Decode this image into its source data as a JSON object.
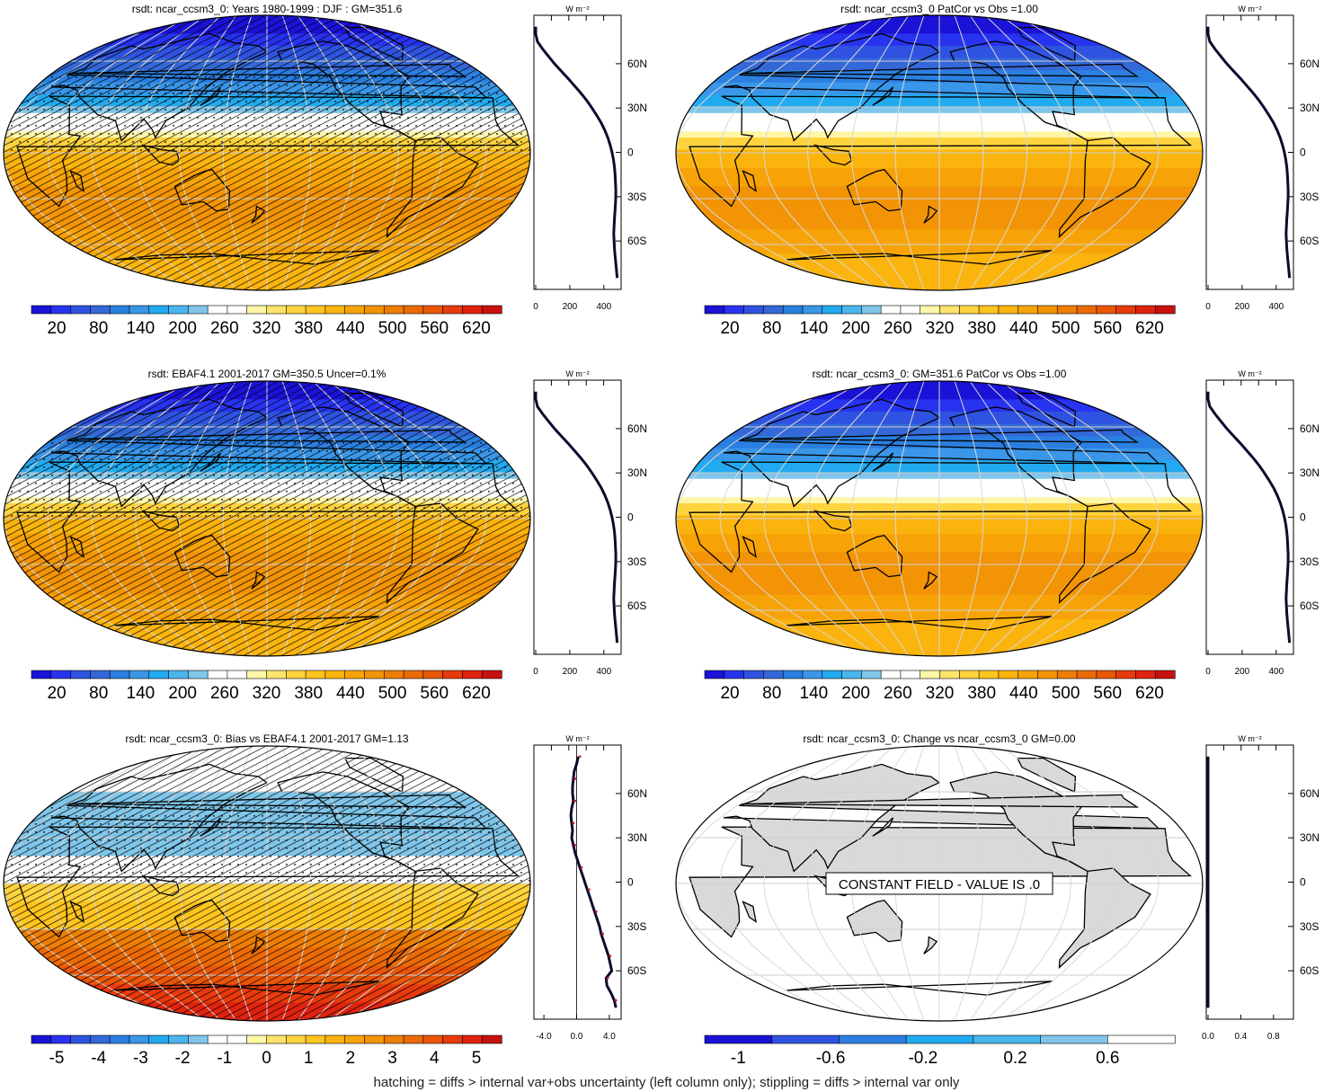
{
  "caption": "hatching = diffs > internal var+obs uncertainty (left column only); stippling = diffs > internal var only",
  "lat_labels": [
    "60N",
    "30N",
    "0",
    "30S",
    "60S"
  ],
  "lat_values": [
    60,
    30,
    0,
    -30,
    -60
  ],
  "profile_unit": "W m⁻²",
  "colors": {
    "cool_scale": [
      "#1a12d6",
      "#2833f0",
      "#2f53e0",
      "#3468d8",
      "#2a7fe0",
      "#3a96e8",
      "#22aaf0",
      "#4ab6ee",
      "#7fc6ea",
      "#ffffff",
      "#ffffff",
      "#fff6a8",
      "#ffe36a",
      "#ffd33e",
      "#ffc51e",
      "#fbb40d",
      "#f7a308",
      "#f29405",
      "#ee7e05",
      "#ec6a06",
      "#ea5608",
      "#e83a0c",
      "#e0230f",
      "#c81010"
    ],
    "bias_scale": [
      "#1a12d6",
      "#2833f0",
      "#2f53e0",
      "#3468d8",
      "#2a7fe0",
      "#3a96e8",
      "#22aaf0",
      "#4ab6ee",
      "#7fc6ea",
      "#ffffff",
      "#ffffff",
      "#fff6a8",
      "#ffe36a",
      "#ffd33e",
      "#ffc51e",
      "#fbb40d",
      "#f7a308",
      "#f29405",
      "#ee7e05",
      "#ec6a06",
      "#ea5608",
      "#e83a0c",
      "#e0230f",
      "#c81010"
    ],
    "change_scale": [
      "#1a12d6",
      "#2f53e0",
      "#2a7fe0",
      "#22aaf0",
      "#4ab6ee",
      "#7fc6ea",
      "#ffffff"
    ],
    "land_gray": "#d9d9d9",
    "profile_line": "#0d0a2e",
    "profile_bias_dots": "#cc1b1b"
  },
  "chart_data": [
    {
      "id": "p1",
      "type": "heatmap",
      "projection": "robinson",
      "title": "rsdt: ncar_ccsm3_0: Years 1980-1999 : DJF : GM=351.6",
      "colorbar_ticks": [
        "20",
        "80",
        "140",
        "200",
        "260",
        "320",
        "380",
        "440",
        "500",
        "560",
        "620"
      ],
      "hatching": true,
      "stippling": true,
      "profile": {
        "xlim": [
          0,
          480
        ],
        "xticks": [
          "0",
          "200",
          "400"
        ],
        "lat": [
          85,
          80,
          75,
          70,
          65,
          60,
          55,
          50,
          45,
          40,
          35,
          30,
          25,
          20,
          15,
          10,
          5,
          0,
          -5,
          -10,
          -15,
          -20,
          -25,
          -30,
          -35,
          -40,
          -45,
          -50,
          -55,
          -60,
          -65,
          -70,
          -75,
          -80,
          -85
        ],
        "values": [
          0,
          0,
          10,
          40,
          75,
          110,
          150,
          190,
          228,
          266,
          300,
          330,
          358,
          384,
          405,
          423,
          437,
          448,
          456,
          462,
          466,
          468,
          470,
          470,
          468,
          465,
          462,
          460,
          458,
          460,
          462,
          466,
          470,
          474,
          478
        ]
      }
    },
    {
      "id": "p2",
      "type": "heatmap",
      "projection": "robinson",
      "title": "rsdt: ncar_ccsm3_0 PatCor vs Obs =1.00",
      "colorbar_ticks": [
        "20",
        "80",
        "140",
        "200",
        "260",
        "320",
        "380",
        "440",
        "500",
        "560",
        "620"
      ],
      "hatching": false,
      "stippling": false,
      "profile": {
        "xlim": [
          0,
          480
        ],
        "xticks": [
          "0",
          "200",
          "400"
        ],
        "lat": [
          85,
          80,
          75,
          70,
          65,
          60,
          55,
          50,
          45,
          40,
          35,
          30,
          25,
          20,
          15,
          10,
          5,
          0,
          -5,
          -10,
          -15,
          -20,
          -25,
          -30,
          -35,
          -40,
          -45,
          -50,
          -55,
          -60,
          -65,
          -70,
          -75,
          -80,
          -85
        ],
        "values": [
          0,
          0,
          10,
          40,
          75,
          110,
          150,
          190,
          228,
          266,
          300,
          330,
          358,
          384,
          405,
          423,
          437,
          448,
          456,
          462,
          466,
          468,
          470,
          470,
          468,
          465,
          462,
          460,
          458,
          460,
          462,
          466,
          470,
          474,
          478
        ]
      }
    },
    {
      "id": "p3",
      "type": "heatmap",
      "projection": "robinson",
      "title": "rsdt: EBAF4.1 2001-2017 GM=350.5 Uncer=0.1%",
      "colorbar_ticks": [
        "20",
        "80",
        "140",
        "200",
        "260",
        "320",
        "380",
        "440",
        "500",
        "560",
        "620"
      ],
      "hatching": true,
      "stippling": true,
      "profile": {
        "xlim": [
          0,
          480
        ],
        "xticks": [
          "0",
          "200",
          "400"
        ],
        "lat": [
          85,
          80,
          75,
          70,
          65,
          60,
          55,
          50,
          45,
          40,
          35,
          30,
          25,
          20,
          15,
          10,
          5,
          0,
          -5,
          -10,
          -15,
          -20,
          -25,
          -30,
          -35,
          -40,
          -45,
          -50,
          -55,
          -60,
          -65,
          -70,
          -75,
          -80,
          -85
        ],
        "values": [
          0,
          0,
          10,
          40,
          75,
          110,
          150,
          190,
          228,
          266,
          300,
          330,
          358,
          384,
          405,
          423,
          437,
          448,
          456,
          462,
          466,
          468,
          470,
          470,
          468,
          465,
          462,
          460,
          458,
          460,
          462,
          466,
          470,
          474,
          478
        ]
      }
    },
    {
      "id": "p4",
      "type": "heatmap",
      "projection": "robinson",
      "title": "rsdt: ncar_ccsm3_0: GM=351.6 PatCor vs Obs =1.00",
      "colorbar_ticks": [
        "20",
        "80",
        "140",
        "200",
        "260",
        "320",
        "380",
        "440",
        "500",
        "560",
        "620"
      ],
      "hatching": false,
      "stippling": false,
      "profile": {
        "xlim": [
          0,
          480
        ],
        "xticks": [
          "0",
          "200",
          "400"
        ],
        "lat": [
          85,
          80,
          75,
          70,
          65,
          60,
          55,
          50,
          45,
          40,
          35,
          30,
          25,
          20,
          15,
          10,
          5,
          0,
          -5,
          -10,
          -15,
          -20,
          -25,
          -30,
          -35,
          -40,
          -45,
          -50,
          -55,
          -60,
          -65,
          -70,
          -75,
          -80,
          -85
        ],
        "values": [
          0,
          0,
          10,
          40,
          75,
          110,
          150,
          190,
          228,
          266,
          300,
          330,
          358,
          384,
          405,
          423,
          437,
          448,
          456,
          462,
          466,
          468,
          470,
          470,
          468,
          465,
          462,
          460,
          458,
          460,
          462,
          466,
          470,
          474,
          478
        ]
      }
    },
    {
      "id": "p5",
      "type": "heatmap",
      "projection": "robinson",
      "title": "rsdt: ncar_ccsm3_0: Bias vs EBAF4.1 2001-2017 GM=1.13",
      "colorbar_ticks": [
        "-5",
        "-4",
        "-3",
        "-2",
        "-1",
        "0",
        "1",
        "2",
        "3",
        "4",
        "5"
      ],
      "hatching": true,
      "stippling": true,
      "profile": {
        "xlim": [
          -5,
          5
        ],
        "xticks": [
          "-4.0",
          "0.0",
          "4.0"
        ],
        "lat": [
          85,
          80,
          75,
          70,
          65,
          60,
          55,
          50,
          45,
          40,
          35,
          30,
          25,
          20,
          15,
          10,
          5,
          0,
          -5,
          -10,
          -15,
          -20,
          -25,
          -30,
          -35,
          -40,
          -45,
          -50,
          -55,
          -60,
          -65,
          -70,
          -75,
          -80,
          -85
        ],
        "values": [
          0.2,
          0.0,
          -0.3,
          -0.4,
          -0.5,
          -0.5,
          -0.4,
          -0.6,
          -0.7,
          -0.6,
          -0.5,
          -0.6,
          -0.4,
          -0.2,
          0.1,
          0.4,
          0.7,
          1.0,
          1.3,
          1.6,
          1.9,
          2.2,
          2.5,
          2.8,
          3.0,
          3.3,
          3.6,
          3.9,
          4.1,
          4.3,
          3.6,
          3.7,
          4.2,
          4.6,
          4.8
        ]
      }
    },
    {
      "id": "p6",
      "type": "heatmap",
      "projection": "robinson",
      "title": "rsdt: ncar_ccsm3_0: Change vs ncar_ccsm3_0 GM=0.00",
      "colorbar_ticks": [
        "-1",
        "-0.6",
        "-0.2",
        "0.2",
        "0.6"
      ],
      "annotation": "CONSTANT FIELD - VALUE IS .0",
      "hatching": false,
      "stippling": false,
      "profile": {
        "xlim": [
          0,
          1
        ],
        "xticks": [
          "0.0",
          "0.4",
          "0.8"
        ],
        "lat": [
          85,
          -85
        ],
        "values": [
          0,
          0
        ]
      }
    }
  ]
}
